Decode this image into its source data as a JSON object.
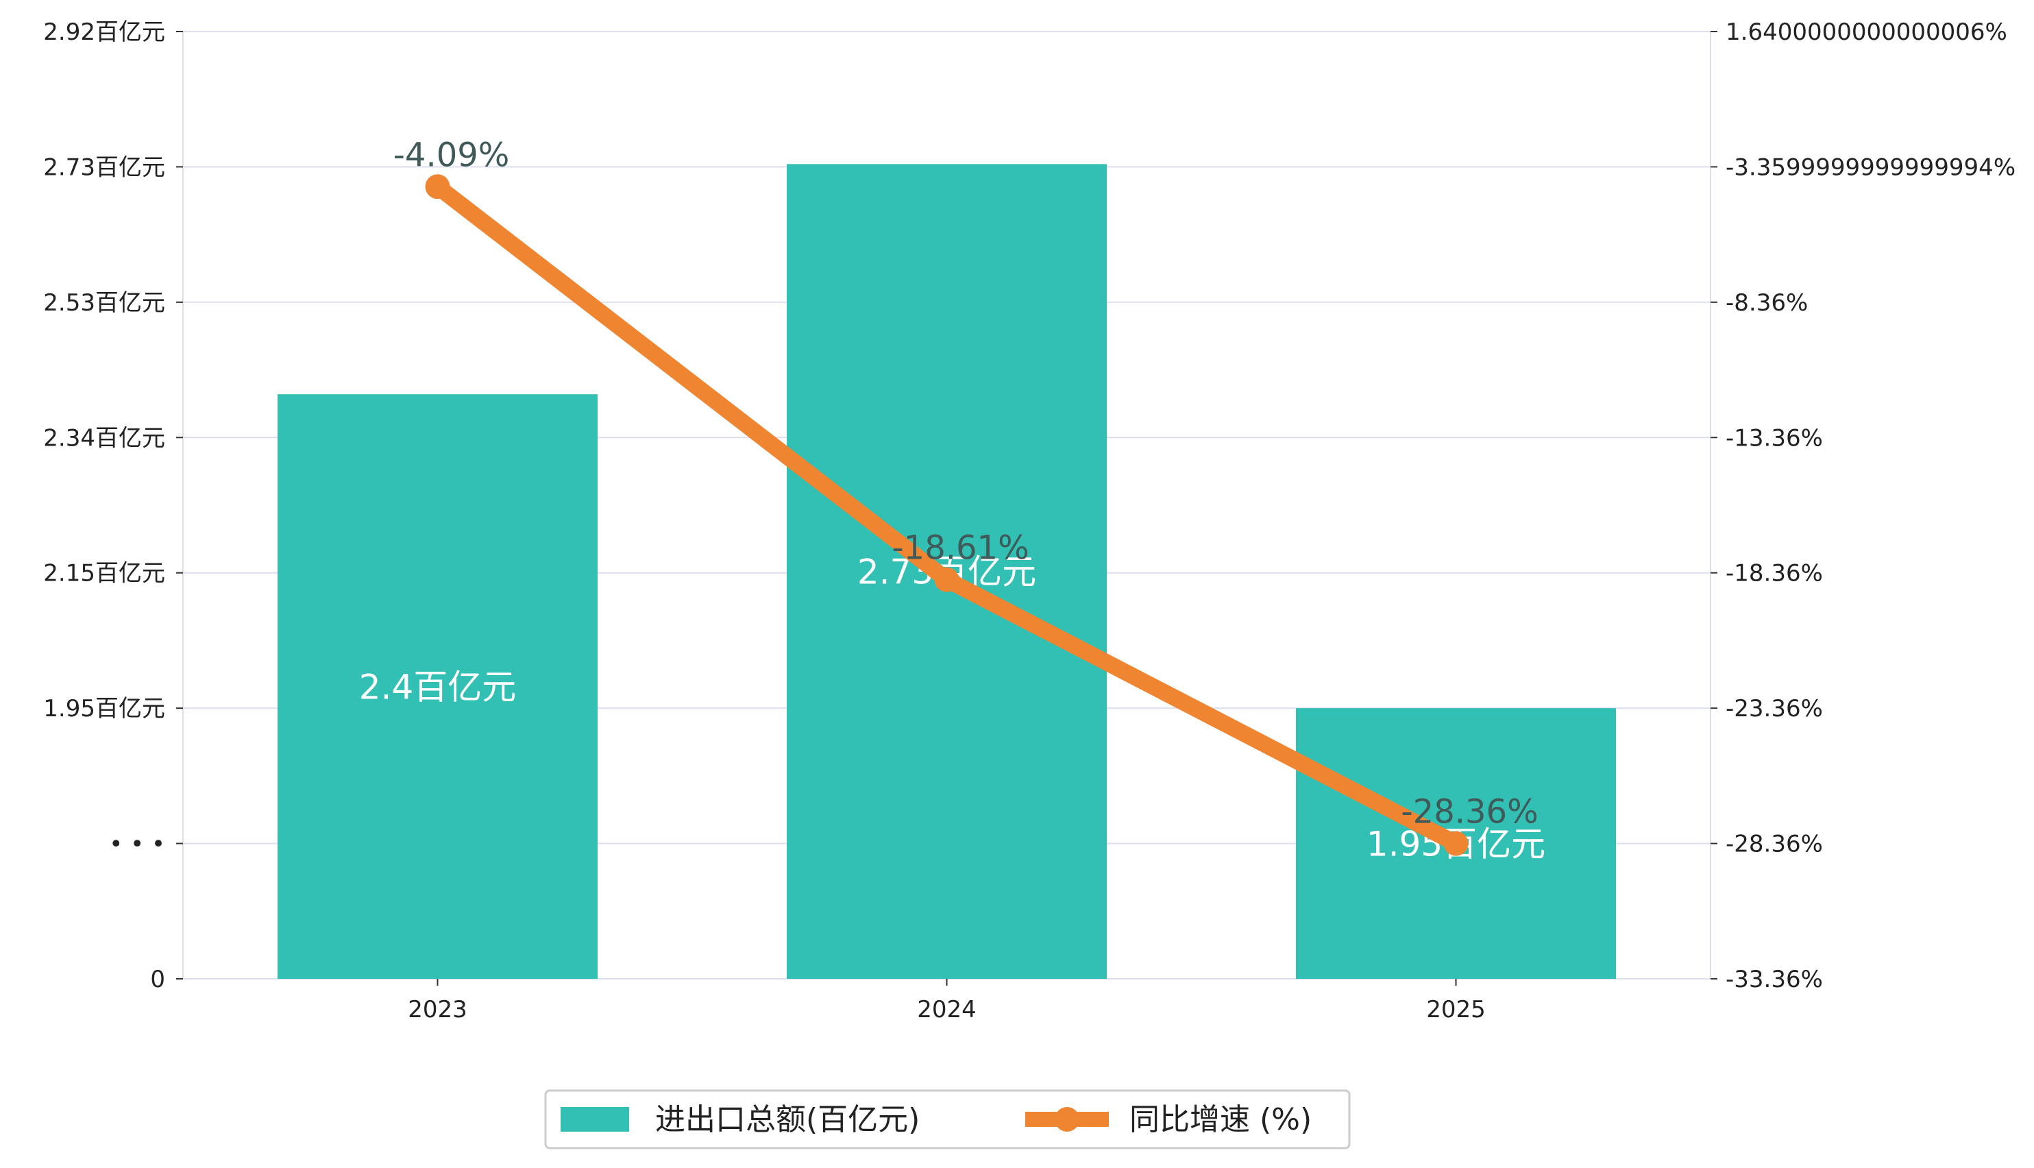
{
  "chart_data": {
    "type": "bar+line",
    "categories": [
      "2023",
      "2024",
      "2025"
    ],
    "series": [
      {
        "name": "进出口总额(百亿元)",
        "type": "bar",
        "axis": "left",
        "values": [
          2.4,
          2.73,
          1.95
        ],
        "labels": [
          "2.4百亿元",
          "2.73百亿元",
          "1.95百亿元"
        ],
        "color": "#31c0b3"
      },
      {
        "name": "同比增速 (%)",
        "type": "line",
        "axis": "right",
        "values": [
          -4.09,
          -18.61,
          -28.36
        ],
        "labels": [
          "-4.09%",
          "-18.61%",
          "-28.36%"
        ],
        "color": "#ef8531"
      }
    ],
    "left_axis": {
      "break": true,
      "tick_labels": [
        "0",
        "• • •",
        "1.95百亿元",
        "2.15百亿元",
        "2.34百亿元",
        "2.53百亿元",
        "2.73百亿元",
        "2.92百亿元"
      ],
      "tick_values": [
        null,
        null,
        1.95,
        2.15,
        2.34,
        2.53,
        2.73,
        2.92
      ]
    },
    "right_axis": {
      "range": [
        -33.36,
        1.64
      ],
      "tick_labels": [
        "-33.36%",
        "-28.36%",
        "-23.36%",
        "-18.36%",
        "-13.36%",
        "-8.36%",
        "-3.3599999999999994%",
        "1.6400000000000006%"
      ],
      "tick_values": [
        -33.36,
        -28.36,
        -23.36,
        -18.36,
        -13.36,
        -8.36,
        -3.36,
        1.64
      ]
    },
    "grid": true,
    "legend": "bottom-center",
    "title": "",
    "xlabel": "",
    "ylabel": ""
  }
}
